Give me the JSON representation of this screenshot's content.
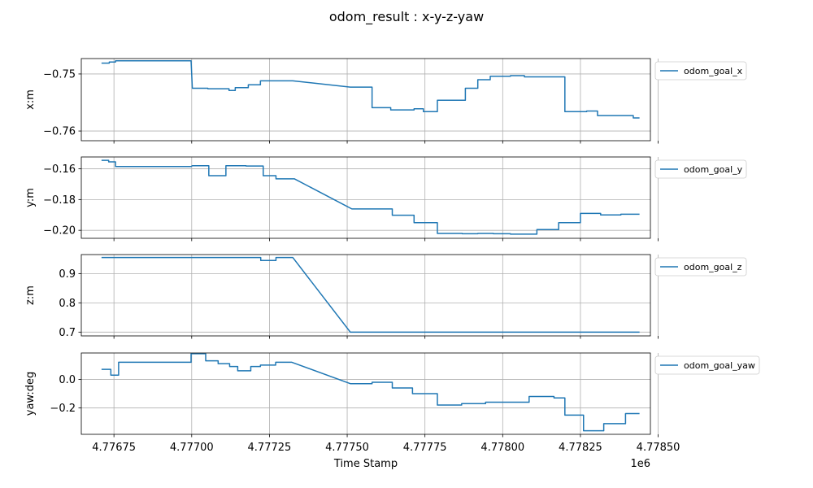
{
  "figure": {
    "title": "odom_result : x-y-z-yaw",
    "xlabel": "Time Stamp",
    "x_offset_label": "1e6",
    "series_color": "#1f77b4"
  },
  "chart_data": [
    {
      "type": "line",
      "ylabel": "x:m",
      "legend": "odom_goal_x",
      "legend_position": "outside-upper-right",
      "grid": true,
      "xlim": [
        4.776645,
        4.778475
      ],
      "ylim": [
        -0.7617,
        -0.7473
      ],
      "xticks": [
        4.77675,
        4.777,
        4.77725,
        4.7775,
        4.77775,
        4.778,
        4.77825,
        4.7785
      ],
      "yticks": [
        -0.75,
        -0.76
      ],
      "ytick_labels": [
        "−0.75",
        "−0.76"
      ],
      "x": [
        4.77671,
        4.776735,
        4.776735,
        4.776755,
        4.776755,
        4.776998,
        4.777002,
        4.777052,
        4.777052,
        4.77712,
        4.77712,
        4.77714,
        4.77714,
        4.777182,
        4.777182,
        4.777221,
        4.777221,
        4.777325,
        4.77751,
        4.77754,
        4.77758,
        4.77758,
        4.77764,
        4.77764,
        4.777715,
        4.777715,
        4.777745,
        4.777745,
        4.77779,
        4.77779,
        4.77788,
        4.77788,
        4.77792,
        4.77792,
        4.77796,
        4.77796,
        4.778025,
        4.778025,
        4.77807,
        4.77807,
        4.7781,
        4.7781,
        4.778118,
        4.7782,
        4.7782,
        4.77827,
        4.77827,
        4.778305,
        4.778305,
        4.77842,
        4.77842,
        4.77844
      ],
      "y": [
        -0.7481,
        -0.7481,
        -0.7479,
        -0.7479,
        -0.7477,
        -0.7477,
        -0.7525,
        -0.7525,
        -0.7526,
        -0.7526,
        -0.7529,
        -0.7529,
        -0.7524,
        -0.7524,
        -0.7519,
        -0.7519,
        -0.7512,
        -0.7512,
        -0.7523,
        -0.7523,
        -0.7523,
        -0.7559,
        -0.7559,
        -0.7563,
        -0.7563,
        -0.7561,
        -0.7561,
        -0.7566,
        -0.7566,
        -0.7546,
        -0.7546,
        -0.7525,
        -0.7525,
        -0.751,
        -0.751,
        -0.7504,
        -0.7504,
        -0.7503,
        -0.7503,
        -0.7505,
        -0.7505,
        -0.7505,
        -0.7505,
        -0.7505,
        -0.7566,
        -0.7566,
        -0.7565,
        -0.7565,
        -0.7573,
        -0.7573,
        -0.7577,
        -0.7577
      ]
    },
    {
      "type": "line",
      "ylabel": "y:m",
      "legend": "odom_goal_y",
      "legend_position": "outside-upper-right",
      "grid": true,
      "xlim": [
        4.776645,
        4.778475
      ],
      "ylim": [
        -0.2052,
        -0.1523
      ],
      "xticks": [
        4.77675,
        4.777,
        4.77725,
        4.7775,
        4.77775,
        4.778,
        4.77825,
        4.7785
      ],
      "yticks": [
        -0.16,
        -0.18,
        -0.2
      ],
      "ytick_labels": [
        "−0.16",
        "−0.18",
        "−0.20"
      ],
      "x": [
        4.77671,
        4.776733,
        4.776733,
        4.776755,
        4.776755,
        4.776998,
        4.777002,
        4.777025,
        4.777025,
        4.777055,
        4.777055,
        4.77711,
        4.77711,
        4.777175,
        4.777175,
        4.77723,
        4.77723,
        4.777271,
        4.777271,
        4.77733,
        4.777515,
        4.777645,
        4.777645,
        4.777715,
        4.777715,
        4.77779,
        4.77779,
        4.77787,
        4.77787,
        4.77792,
        4.77792,
        4.77797,
        4.77797,
        4.778025,
        4.778025,
        4.77811,
        4.77811,
        4.77818,
        4.77818,
        4.77825,
        4.77825,
        4.778315,
        4.778315,
        4.77838,
        4.77838,
        4.77844
      ],
      "y": [
        -0.1545,
        -0.1545,
        -0.1555,
        -0.1555,
        -0.1585,
        -0.1585,
        -0.158,
        -0.158,
        -0.158,
        -0.158,
        -0.1645,
        -0.1645,
        -0.158,
        -0.158,
        -0.1582,
        -0.1582,
        -0.1645,
        -0.1645,
        -0.1665,
        -0.1665,
        -0.1861,
        -0.1861,
        -0.1902,
        -0.1902,
        -0.195,
        -0.195,
        -0.202,
        -0.202,
        -0.2022,
        -0.2022,
        -0.202,
        -0.202,
        -0.2022,
        -0.2022,
        -0.2025,
        -0.2025,
        -0.1995,
        -0.1995,
        -0.195,
        -0.195,
        -0.189,
        -0.189,
        -0.19,
        -0.19,
        -0.1895,
        -0.1895
      ]
    },
    {
      "type": "line",
      "ylabel": "z:m",
      "legend": "odom_goal_z",
      "legend_position": "outside-upper-right",
      "grid": true,
      "xlim": [
        4.776645,
        4.778475
      ],
      "ylim": [
        0.687,
        0.965
      ],
      "xticks": [
        4.77675,
        4.777,
        4.77725,
        4.7775,
        4.77775,
        4.778,
        4.77825,
        4.7785
      ],
      "yticks": [
        0.9,
        0.8,
        0.7
      ],
      "ytick_labels": [
        "0.9",
        "0.8",
        "0.7"
      ],
      "x": [
        4.77671,
        4.777222,
        4.777222,
        4.777271,
        4.777271,
        4.777325,
        4.77751,
        4.77844
      ],
      "y": [
        0.955,
        0.955,
        0.945,
        0.945,
        0.955,
        0.955,
        0.7,
        0.7
      ]
    },
    {
      "type": "line",
      "ylabel": "yaw:deg",
      "legend": "odom_goal_yaw",
      "legend_position": "outside-upper-right",
      "grid": true,
      "xlim": [
        4.776645,
        4.778475
      ],
      "ylim": [
        -0.385,
        0.185
      ],
      "xticks": [
        4.77675,
        4.777,
        4.77725,
        4.7775,
        4.77775,
        4.778,
        4.77825,
        4.7785
      ],
      "xtick_labels": [
        "4.77675",
        "4.77700",
        "4.77725",
        "4.77750",
        "4.77775",
        "4.77800",
        "4.77825",
        "4.77850"
      ],
      "yticks": [
        0.0,
        -0.2
      ],
      "ytick_labels": [
        "0.0",
        "−0.2"
      ],
      "x": [
        4.77671,
        4.77674,
        4.77674,
        4.776765,
        4.776765,
        4.776998,
        4.776998,
        4.777045,
        4.777045,
        4.777085,
        4.777085,
        4.777122,
        4.777122,
        4.777148,
        4.777148,
        4.77719,
        4.77719,
        4.777221,
        4.777221,
        4.77727,
        4.77727,
        4.777322,
        4.77751,
        4.77758,
        4.77758,
        4.777645,
        4.777645,
        4.77771,
        4.77771,
        4.77779,
        4.77779,
        4.777868,
        4.777868,
        4.777945,
        4.777945,
        4.778085,
        4.778085,
        4.778165,
        4.778165,
        4.7782,
        4.7782,
        4.77826,
        4.77826,
        4.778325,
        4.778325,
        4.778395,
        4.778395,
        4.77844
      ],
      "y": [
        0.07,
        0.07,
        0.03,
        0.03,
        0.12,
        0.12,
        0.18,
        0.18,
        0.13,
        0.13,
        0.11,
        0.11,
        0.09,
        0.09,
        0.06,
        0.06,
        0.09,
        0.09,
        0.1,
        0.1,
        0.12,
        0.12,
        -0.03,
        -0.03,
        -0.02,
        -0.02,
        -0.06,
        -0.06,
        -0.1,
        -0.1,
        -0.18,
        -0.18,
        -0.17,
        -0.17,
        -0.16,
        -0.16,
        -0.12,
        -0.12,
        -0.13,
        -0.13,
        -0.25,
        -0.25,
        -0.36,
        -0.36,
        -0.31,
        -0.31,
        -0.24,
        -0.24
      ]
    }
  ]
}
